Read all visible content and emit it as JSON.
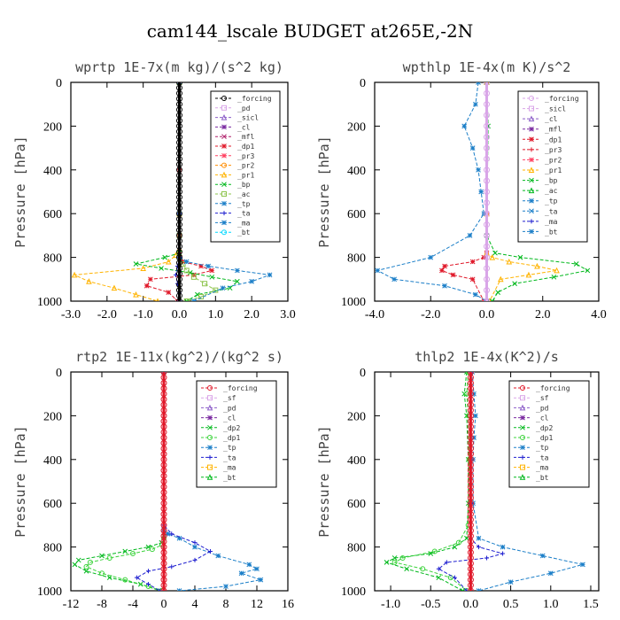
{
  "figure_title": "cam144_lscale  BUDGET at265E,-2N",
  "chart_data": [
    {
      "type": "line",
      "title": "wprtp  1E-7x(m kg)/(s^2 kg)",
      "ylabel": "Pressure [hPa]",
      "xlim": [
        -3.0,
        3.0
      ],
      "ylim": [
        0,
        1000
      ],
      "y_inverted": true,
      "xticks": [
        "-3.0",
        "-2.0",
        "-1.0",
        "0.0",
        "1.0",
        "2.0",
        "3.0"
      ],
      "xtick_values": [
        -3,
        -2,
        -1,
        0,
        1,
        2,
        3
      ],
      "yticks": [
        "0",
        "200",
        "400",
        "600",
        "800",
        "1000"
      ],
      "ytick_values": [
        0,
        200,
        400,
        600,
        800,
        1000
      ],
      "legend": [
        "_forcing",
        "_pd",
        "_sicl",
        "_cl",
        "_mfl",
        "_dp1",
        "_pr3",
        "_pr2",
        "_pr1",
        "_bp",
        "_ac",
        "_tp",
        "_ta",
        "_ma",
        "_bt"
      ],
      "legend_position": "top-right",
      "series": [
        {
          "name": "_forcing",
          "color": "#000000",
          "marker": "circle",
          "x": [
            0,
            0,
            0,
            0,
            0,
            0,
            0,
            0,
            0,
            0,
            0,
            0,
            0,
            0,
            0,
            0,
            0,
            0,
            0,
            0,
            0,
            0,
            0,
            0,
            0,
            0,
            0,
            0,
            0,
            0,
            0,
            0,
            0,
            0,
            0,
            0,
            0,
            0,
            0,
            0,
            0
          ],
          "y": [
            0,
            25,
            50,
            75,
            100,
            125,
            150,
            175,
            200,
            225,
            250,
            275,
            300,
            325,
            350,
            375,
            400,
            425,
            450,
            475,
            500,
            525,
            550,
            575,
            600,
            625,
            650,
            675,
            700,
            725,
            750,
            775,
            800,
            825,
            850,
            875,
            900,
            925,
            950,
            975,
            1000
          ]
        },
        {
          "name": "_dp1",
          "color": "#e0192a",
          "marker": "star",
          "x": [
            0,
            0,
            0,
            0,
            0.02,
            0.1,
            0.6,
            0.9,
            0.4,
            -0.8,
            -0.9,
            -0.3,
            -0.05
          ],
          "y": [
            0,
            400,
            700,
            780,
            800,
            820,
            840,
            860,
            880,
            900,
            930,
            960,
            1000
          ]
        },
        {
          "name": "_pr1",
          "color": "#ffb300",
          "marker": "triangle",
          "x": [
            0,
            0,
            0,
            -0.1,
            -0.3,
            -1.0,
            -2.9,
            -2.5,
            -1.8,
            -1.2,
            -0.6
          ],
          "y": [
            0,
            600,
            760,
            790,
            820,
            850,
            880,
            910,
            940,
            970,
            1000
          ]
        },
        {
          "name": "_bp",
          "color": "#00b81c",
          "marker": "cross",
          "x": [
            0,
            0,
            0,
            -0.4,
            -1.2,
            -0.5,
            0.3,
            0.9,
            1.6,
            1.4,
            0.5,
            0.2
          ],
          "y": [
            0,
            600,
            780,
            800,
            830,
            850,
            870,
            890,
            910,
            940,
            970,
            1000
          ]
        },
        {
          "name": "_ac",
          "color": "#8ec44d",
          "marker": "square",
          "x": [
            0,
            0,
            0,
            0.1,
            0.2,
            0.4,
            0.7,
            1.0,
            0.6,
            0.2
          ],
          "y": [
            0,
            700,
            800,
            830,
            860,
            890,
            920,
            950,
            980,
            1000
          ]
        },
        {
          "name": "_tp",
          "color": "#1c7fc8",
          "marker": "asterisk",
          "x": [
            0,
            0,
            0,
            0.2,
            0.8,
            1.6,
            2.5,
            2.0,
            1.2,
            0.4
          ],
          "y": [
            0,
            600,
            800,
            820,
            840,
            860,
            880,
            910,
            940,
            1000
          ]
        },
        {
          "name": "_ta",
          "color": "#2020d0",
          "marker": "plus",
          "x": [
            0,
            0,
            0,
            -0.05,
            -0.1,
            -0.05,
            0,
            0
          ],
          "y": [
            0,
            600,
            800,
            840,
            880,
            920,
            960,
            1000
          ]
        }
      ]
    },
    {
      "type": "line",
      "title": "wpthlp  1E-4x(m K)/s^2",
      "ylabel": "Pressure [hPa]",
      "xlim": [
        -4.0,
        4.0
      ],
      "ylim": [
        0,
        1000
      ],
      "y_inverted": true,
      "xticks": [
        "-4.0",
        "-2.0",
        "0.0",
        "2.0",
        "4.0"
      ],
      "xtick_values": [
        -4,
        -2,
        0,
        2,
        4
      ],
      "yticks": [
        "0",
        "200",
        "400",
        "600",
        "800",
        "1000"
      ],
      "ytick_values": [
        0,
        200,
        400,
        600,
        800,
        1000
      ],
      "legend": [
        "_forcing",
        "_sicl",
        "_cl",
        "_mfl",
        "_dp1",
        "_pr3",
        "_pr2",
        "_pr1",
        "_bp",
        "_ac",
        "_tp",
        "_ta",
        "_ma",
        "_bt"
      ],
      "legend_position": "top-right",
      "series": [
        {
          "name": "_forcing",
          "color": "#d9a5e8",
          "marker": "circle",
          "x": [
            0,
            0,
            0,
            0,
            0,
            0,
            0,
            0,
            0,
            0,
            0,
            0,
            0,
            0,
            0,
            0,
            0,
            0,
            0,
            0,
            0
          ],
          "y": [
            0,
            50,
            100,
            150,
            200,
            250,
            300,
            350,
            400,
            450,
            500,
            550,
            600,
            650,
            700,
            750,
            800,
            850,
            900,
            950,
            1000
          ]
        },
        {
          "name": "_dp1",
          "color": "#e0192a",
          "marker": "star",
          "x": [
            0,
            0,
            0,
            -0.1,
            -0.5,
            -1.5,
            -1.6,
            -1.2,
            -0.5,
            -0.1
          ],
          "y": [
            0,
            600,
            780,
            800,
            820,
            840,
            860,
            880,
            900,
            1000
          ]
        },
        {
          "name": "_pr1",
          "color": "#ffb300",
          "marker": "triangle",
          "x": [
            0,
            0,
            0,
            0.2,
            0.8,
            1.8,
            2.5,
            1.5,
            0.5,
            0.1
          ],
          "y": [
            0,
            600,
            780,
            800,
            820,
            840,
            860,
            880,
            900,
            1000
          ]
        },
        {
          "name": "_bp",
          "color": "#00b81c",
          "marker": "cross",
          "x": [
            0,
            0.05,
            0,
            0.3,
            1.2,
            3.2,
            3.6,
            2.4,
            1.0,
            0.4,
            0.2
          ],
          "y": [
            0,
            200,
            700,
            780,
            800,
            830,
            860,
            890,
            920,
            960,
            1000
          ]
        },
        {
          "name": "_tp",
          "color": "#1c7fc8",
          "marker": "asterisk",
          "x": [
            -0.3,
            -0.4,
            -0.8,
            -0.5,
            -0.3,
            -0.2,
            -0.1,
            -0.6,
            -2.0,
            -3.9,
            -3.3,
            -1.5,
            -0.4,
            0
          ],
          "y": [
            0,
            100,
            200,
            300,
            400,
            500,
            600,
            700,
            800,
            860,
            900,
            930,
            970,
            1000
          ]
        }
      ]
    },
    {
      "type": "line",
      "title": "rtp2  1E-11x(kg^2)/(kg^2 s)",
      "ylabel": "Pressure [hPa]",
      "xlim": [
        -12,
        16
      ],
      "ylim": [
        0,
        1000
      ],
      "y_inverted": true,
      "xticks": [
        "-12",
        "-8",
        "-4",
        "0",
        "4",
        "8",
        "12",
        "16"
      ],
      "xtick_values": [
        -12,
        -8,
        -4,
        0,
        4,
        8,
        12,
        16
      ],
      "yticks": [
        "0",
        "200",
        "400",
        "600",
        "800",
        "1000"
      ],
      "ytick_values": [
        0,
        200,
        400,
        600,
        800,
        1000
      ],
      "legend": [
        "_forcing",
        "_sf",
        "_pd",
        "_cl",
        "_dp2",
        "_dp1",
        "_tp",
        "_ta",
        "_ma",
        "_bt"
      ],
      "legend_position": "top-right",
      "series": [
        {
          "name": "_forcing",
          "color": "#e0192a",
          "marker": "circle",
          "x": [
            0,
            0,
            0,
            0,
            0,
            0,
            0,
            0,
            0,
            0,
            0,
            0,
            0,
            0,
            0,
            0,
            0,
            0,
            0,
            0,
            0,
            0,
            0,
            0,
            0,
            0,
            0,
            0,
            0,
            0,
            0,
            0,
            0,
            0,
            0,
            0,
            0,
            0,
            0,
            0,
            0
          ],
          "y": [
            0,
            25,
            50,
            75,
            100,
            125,
            150,
            175,
            200,
            225,
            250,
            275,
            300,
            325,
            350,
            375,
            400,
            425,
            450,
            475,
            500,
            525,
            550,
            575,
            600,
            625,
            650,
            675,
            700,
            725,
            750,
            775,
            800,
            825,
            850,
            875,
            900,
            925,
            950,
            975,
            1000
          ]
        },
        {
          "name": "_dp2",
          "color": "#00b81c",
          "marker": "cross",
          "x": [
            0,
            0,
            -0.3,
            -2,
            -5,
            -8,
            -11,
            -11.5,
            -10,
            -7,
            -3,
            -0.5
          ],
          "y": [
            0,
            750,
            780,
            800,
            820,
            840,
            860,
            880,
            910,
            940,
            970,
            1000
          ]
        },
        {
          "name": "_dp1",
          "color": "#3cd33c",
          "marker": "circle",
          "x": [
            0,
            0,
            -0.2,
            -1.5,
            -4,
            -7,
            -9.5,
            -10,
            -8,
            -5,
            -2,
            -0.3
          ],
          "y": [
            0,
            760,
            790,
            810,
            830,
            850,
            870,
            890,
            920,
            950,
            980,
            1000
          ]
        },
        {
          "name": "_tp",
          "color": "#1c7fc8",
          "marker": "asterisk",
          "x": [
            0,
            0,
            0.5,
            2,
            4,
            7,
            11,
            12,
            10,
            12.5,
            8,
            2
          ],
          "y": [
            0,
            720,
            740,
            760,
            800,
            840,
            880,
            900,
            920,
            950,
            980,
            1000
          ]
        },
        {
          "name": "_ta",
          "color": "#2020d0",
          "marker": "plus",
          "x": [
            0,
            0,
            1,
            4,
            6,
            4,
            1,
            -2,
            -3.5,
            -2,
            -0.5
          ],
          "y": [
            0,
            700,
            740,
            780,
            820,
            860,
            890,
            910,
            940,
            970,
            1000
          ]
        }
      ]
    },
    {
      "type": "line",
      "title": "thlp2  1E-4x(K^2)/s",
      "ylabel": "Pressure [hPa]",
      "xlim": [
        -1.2,
        1.6
      ],
      "ylim": [
        0,
        1000
      ],
      "y_inverted": true,
      "xticks": [
        "-1.0",
        "-0.5",
        "0.0",
        "0.5",
        "1.0",
        "1.5"
      ],
      "xtick_values": [
        -1.0,
        -0.5,
        0.0,
        0.5,
        1.0,
        1.5
      ],
      "yticks": [
        "0",
        "200",
        "400",
        "600",
        "800",
        "1000"
      ],
      "ytick_values": [
        0,
        200,
        400,
        600,
        800,
        1000
      ],
      "legend": [
        "_forcing",
        "_sf",
        "_pd",
        "_cl",
        "_dp2",
        "_dp1",
        "_tp",
        "_ta",
        "_ma",
        "_bt"
      ],
      "legend_position": "top-right",
      "series": [
        {
          "name": "_forcing",
          "color": "#e0192a",
          "marker": "circle",
          "x": [
            0,
            0,
            0,
            0,
            0,
            0,
            0,
            0,
            0,
            0,
            0,
            0,
            0,
            0,
            0,
            0,
            0,
            0,
            0,
            0,
            0,
            0,
            0,
            0,
            0,
            0,
            0,
            0,
            0,
            0,
            0,
            0,
            0,
            0,
            0,
            0,
            0,
            0,
            0,
            0,
            0
          ],
          "y": [
            0,
            25,
            50,
            75,
            100,
            125,
            150,
            175,
            200,
            225,
            250,
            275,
            300,
            325,
            350,
            375,
            400,
            425,
            450,
            475,
            500,
            525,
            550,
            575,
            600,
            625,
            650,
            675,
            700,
            725,
            750,
            775,
            800,
            825,
            850,
            875,
            900,
            925,
            950,
            975,
            1000
          ]
        },
        {
          "name": "_dp2",
          "color": "#00b81c",
          "marker": "cross",
          "x": [
            -0.05,
            -0.08,
            -0.05,
            -0.03,
            -0.03,
            -0.05,
            -0.2,
            -0.5,
            -0.95,
            -1.05,
            -0.8,
            -0.4,
            -0.1
          ],
          "y": [
            0,
            100,
            200,
            400,
            600,
            760,
            800,
            830,
            850,
            870,
            900,
            940,
            1000
          ]
        },
        {
          "name": "_dp1",
          "color": "#3cd33c",
          "marker": "circle",
          "x": [
            -0.03,
            -0.05,
            -0.03,
            -0.02,
            -0.03,
            -0.15,
            -0.45,
            -0.85,
            -0.95,
            -0.6,
            -0.25,
            -0.05
          ],
          "y": [
            0,
            100,
            200,
            400,
            700,
            780,
            820,
            850,
            870,
            900,
            940,
            1000
          ]
        },
        {
          "name": "_tp",
          "color": "#1c7fc8",
          "marker": "asterisk",
          "x": [
            0.02,
            0.04,
            0.06,
            0.04,
            0.03,
            0.03,
            0.1,
            0.4,
            0.9,
            1.4,
            1.0,
            0.5,
            0.1
          ],
          "y": [
            0,
            100,
            200,
            300,
            400,
            600,
            760,
            800,
            840,
            880,
            920,
            960,
            1000
          ]
        },
        {
          "name": "_ta",
          "color": "#2020d0",
          "marker": "plus",
          "x": [
            0,
            0,
            0,
            0.1,
            0.4,
            0.2,
            -0.3,
            -0.4,
            -0.2,
            -0.05
          ],
          "y": [
            0,
            600,
            760,
            800,
            830,
            850,
            870,
            900,
            940,
            1000
          ]
        }
      ]
    }
  ]
}
